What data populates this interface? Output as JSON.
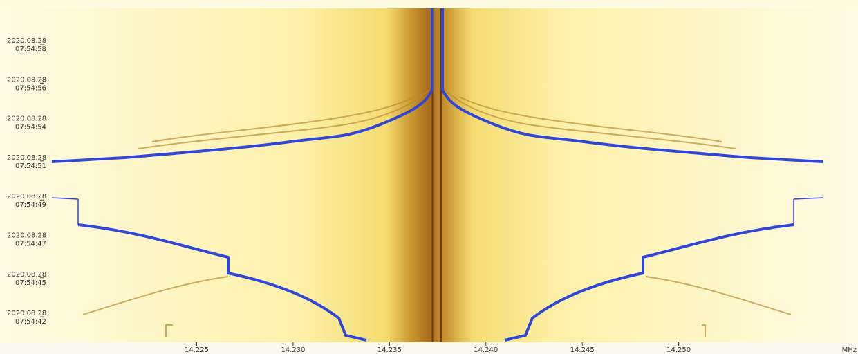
{
  "chart_data": {
    "type": "spectrogram",
    "time_labels": [
      {
        "date": "2020.08.28",
        "time": "07:54:58"
      },
      {
        "date": "2020.08.28",
        "time": "07:54:56"
      },
      {
        "date": "2020.08.28",
        "time": "07:54:54"
      },
      {
        "date": "2020.08.28",
        "time": "07:54:51"
      },
      {
        "date": "2020.08.28",
        "time": "07:54:49"
      },
      {
        "date": "2020.08.28",
        "time": "07:54:47"
      },
      {
        "date": "2020.08.28",
        "time": "07:54:45"
      },
      {
        "date": "2020.08.28",
        "time": "07:54:42"
      }
    ],
    "xlim": [
      14.2148,
      14.2593
    ],
    "xticks": [
      14.225,
      {
        "value": 14.23,
        "label": "14.230"
      },
      14.235,
      {
        "value": 14.24,
        "label": "14.240"
      },
      14.245,
      {
        "value": 14.25,
        "label": "14.250"
      }
    ],
    "x_unit": "MHz"
  }
}
